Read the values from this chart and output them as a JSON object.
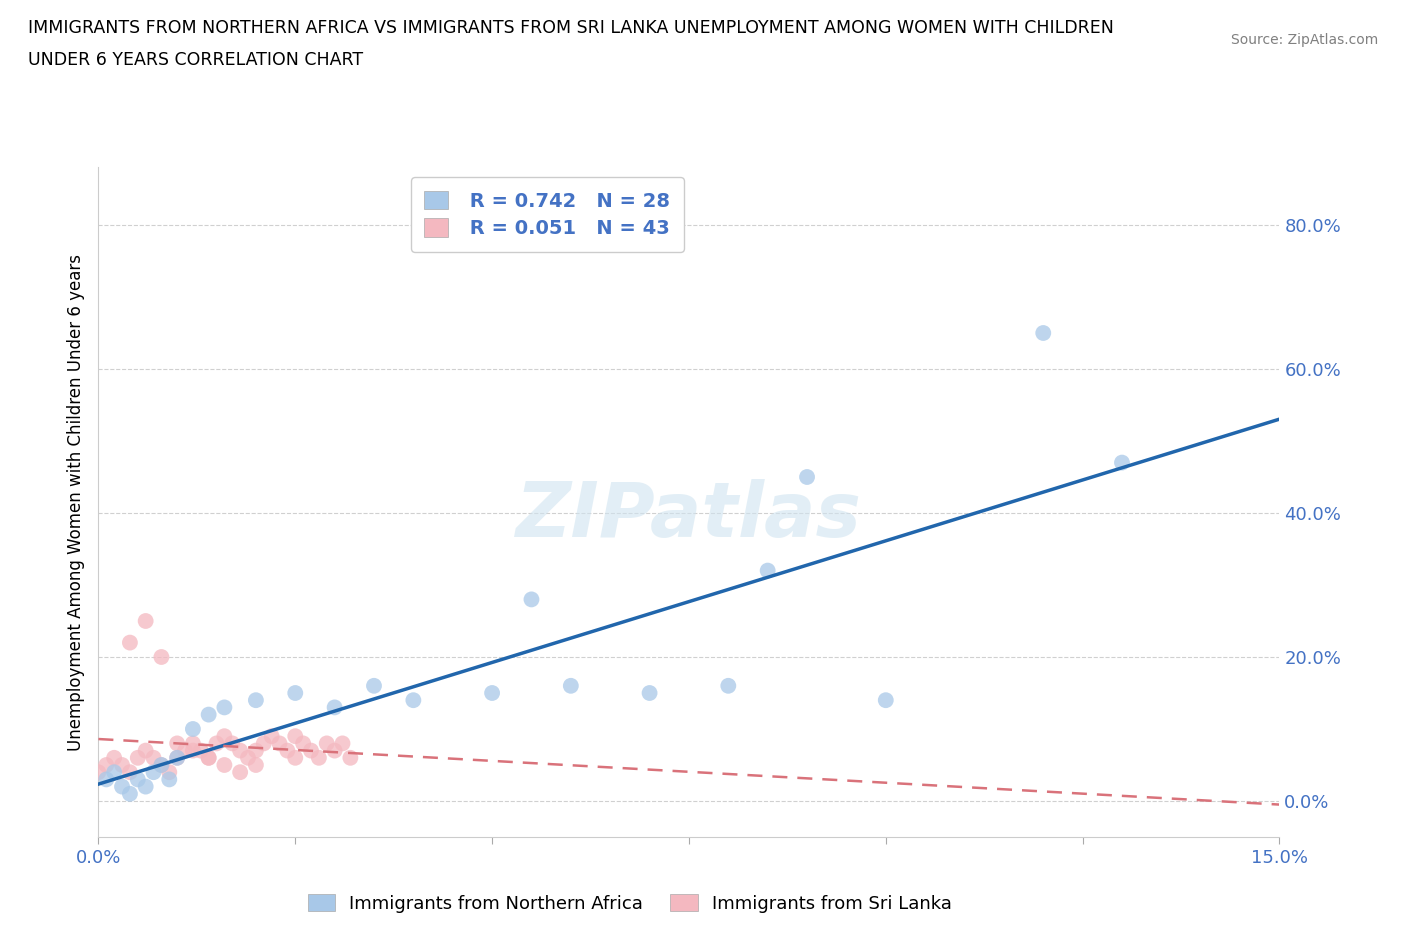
{
  "title_line1": "IMMIGRANTS FROM NORTHERN AFRICA VS IMMIGRANTS FROM SRI LANKA UNEMPLOYMENT AMONG WOMEN WITH CHILDREN",
  "title_line2": "UNDER 6 YEARS CORRELATION CHART",
  "source": "Source: ZipAtlas.com",
  "ylabel": "Unemployment Among Women with Children Under 6 years",
  "watermark": "ZIPatlas",
  "legend_label1": "Immigrants from Northern Africa",
  "legend_label2": "Immigrants from Sri Lanka",
  "R1": 0.742,
  "N1": 28,
  "R2": 0.051,
  "N2": 43,
  "color1": "#a8c8e8",
  "color2": "#f4b8c0",
  "trendline1_color": "#2166ac",
  "trendline2_color": "#d9727a",
  "ytick_labels": [
    "0.0%",
    "20.0%",
    "40.0%",
    "60.0%",
    "80.0%"
  ],
  "ytick_values": [
    0.0,
    0.2,
    0.4,
    0.6,
    0.8
  ],
  "xlim": [
    0.0,
    0.15
  ],
  "ylim": [
    -0.05,
    0.88
  ],
  "na_x": [
    0.001,
    0.002,
    0.003,
    0.004,
    0.005,
    0.006,
    0.007,
    0.008,
    0.009,
    0.01,
    0.012,
    0.014,
    0.016,
    0.02,
    0.025,
    0.03,
    0.035,
    0.04,
    0.05,
    0.055,
    0.06,
    0.07,
    0.08,
    0.085,
    0.09,
    0.1,
    0.12,
    0.13
  ],
  "na_y": [
    0.03,
    0.04,
    0.02,
    0.01,
    0.03,
    0.02,
    0.04,
    0.05,
    0.03,
    0.06,
    0.1,
    0.12,
    0.13,
    0.14,
    0.15,
    0.13,
    0.16,
    0.14,
    0.15,
    0.28,
    0.16,
    0.15,
    0.16,
    0.32,
    0.45,
    0.14,
    0.65,
    0.47
  ],
  "sl_x": [
    0.0,
    0.001,
    0.002,
    0.003,
    0.004,
    0.005,
    0.006,
    0.007,
    0.008,
    0.009,
    0.01,
    0.011,
    0.012,
    0.013,
    0.014,
    0.015,
    0.016,
    0.017,
    0.018,
    0.019,
    0.02,
    0.021,
    0.022,
    0.023,
    0.024,
    0.025,
    0.026,
    0.027,
    0.028,
    0.029,
    0.03,
    0.031,
    0.032,
    0.004,
    0.006,
    0.008,
    0.01,
    0.012,
    0.014,
    0.016,
    0.018,
    0.02,
    0.025
  ],
  "sl_y": [
    0.04,
    0.05,
    0.06,
    0.05,
    0.04,
    0.06,
    0.07,
    0.06,
    0.05,
    0.04,
    0.06,
    0.07,
    0.08,
    0.07,
    0.06,
    0.08,
    0.09,
    0.08,
    0.07,
    0.06,
    0.07,
    0.08,
    0.09,
    0.08,
    0.07,
    0.09,
    0.08,
    0.07,
    0.06,
    0.08,
    0.07,
    0.08,
    0.06,
    0.22,
    0.25,
    0.2,
    0.08,
    0.07,
    0.06,
    0.05,
    0.04,
    0.05,
    0.06
  ],
  "background_color": "#ffffff",
  "grid_color": "#d0d0d0"
}
